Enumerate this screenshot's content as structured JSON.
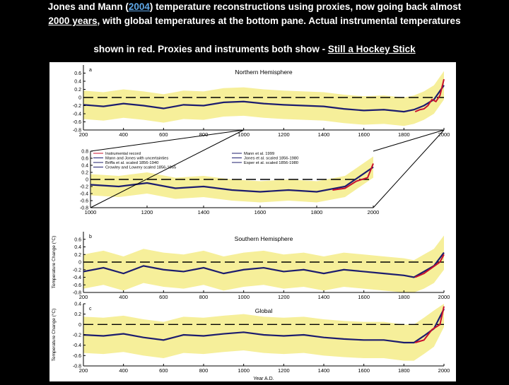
{
  "caption": {
    "line1_prefix": "Jones and Mann (",
    "line1_year": "2004",
    "line1_suffix": ") temperature reconstructions using proxies, now going back almost",
    "line2_years": "2000 years",
    "line2_suffix": ", with global temperatures at the bottom pane. Actual instrumental temperatures",
    "line3_prefix": "shown in red. Proxies and instruments both show - ",
    "line3_link": "Still a Hockey Stick"
  },
  "colors": {
    "band": "#f6ef9a",
    "recon": "#1c1c6e",
    "instrumental": "#c8102e",
    "dashed": "#000000"
  },
  "chart_data": [
    {
      "id": "a",
      "type": "line",
      "panel_letter": "a",
      "title": "Northern Hemisphere",
      "xlim": [
        200,
        2000
      ],
      "ylim": [
        -0.8,
        0.8
      ],
      "xticks": [
        "200",
        "400",
        "600",
        "800",
        "1000",
        "1200",
        "1400",
        "1600",
        "1800",
        "2000"
      ],
      "yticks": [
        "0.6",
        "0.4",
        "0.2",
        "0",
        "-0.2",
        "-0.4",
        "-0.6",
        "-0.8"
      ],
      "band_halfwidth": 0.35,
      "series": [
        {
          "kind": "reconstruction",
          "x": [
            200,
            300,
            400,
            500,
            600,
            700,
            800,
            900,
            1000,
            1100,
            1200,
            1300,
            1400,
            1500,
            1600,
            1700,
            1800,
            1850,
            1900,
            1950,
            2000
          ],
          "values": [
            -0.18,
            -0.22,
            -0.15,
            -0.2,
            -0.27,
            -0.18,
            -0.2,
            -0.12,
            -0.1,
            -0.15,
            -0.18,
            -0.2,
            -0.22,
            -0.28,
            -0.32,
            -0.3,
            -0.35,
            -0.3,
            -0.2,
            -0.05,
            0.3
          ]
        },
        {
          "kind": "instrumental",
          "x": [
            1856,
            1880,
            1900,
            1920,
            1940,
            1960,
            1980,
            2000
          ],
          "values": [
            -0.35,
            -0.3,
            -0.28,
            -0.2,
            -0.05,
            -0.1,
            0.05,
            0.45
          ]
        }
      ]
    },
    {
      "id": "inset",
      "type": "line",
      "xlim": [
        1000,
        2000
      ],
      "ylim": [
        -0.8,
        0.8
      ],
      "xticks": [
        "1000",
        "1200",
        "1400",
        "1600",
        "1800",
        "2000"
      ],
      "yticks": [
        "0.8",
        "0.6",
        "0.4",
        "0.2",
        "0",
        "-0.2",
        "-0.4",
        "-0.6",
        "-0.8"
      ],
      "band_halfwidth": 0.3,
      "legend": [
        "Instrumental record",
        "Mann and Jones with uncertainties",
        "Briffa et al. scaled 1856-1940",
        "Crowley and Lowery scaled 1856-1965",
        "Mann et al. 1999",
        "Jones et al. scaled 1856-1980",
        "Esper et al. scaled 1856-1980"
      ],
      "series": [
        {
          "kind": "reconstruction",
          "x": [
            1000,
            1100,
            1200,
            1300,
            1400,
            1500,
            1600,
            1700,
            1800,
            1900,
            2000
          ],
          "values": [
            -0.15,
            -0.2,
            -0.1,
            -0.25,
            -0.2,
            -0.3,
            -0.35,
            -0.3,
            -0.35,
            -0.2,
            0.35
          ]
        },
        {
          "kind": "instrumental",
          "x": [
            1856,
            1900,
            1940,
            1980,
            2000
          ],
          "values": [
            -0.3,
            -0.25,
            -0.05,
            0.05,
            0.45
          ]
        }
      ]
    },
    {
      "id": "b",
      "type": "line",
      "panel_letter": "b",
      "title": "Southern Hemisphere",
      "xlim": [
        200,
        2000
      ],
      "ylim": [
        -0.8,
        0.8
      ],
      "xticks": [
        "200",
        "400",
        "600",
        "800",
        "1000",
        "1200",
        "1400",
        "1600",
        "1800",
        "2000"
      ],
      "yticks": [
        "0.6",
        "0.4",
        "0.2",
        "0",
        "-0.2",
        "-0.4",
        "-0.6",
        "-0.8"
      ],
      "ylabel": "Temperature Change (°C)",
      "band_halfwidth": 0.45,
      "series": [
        {
          "kind": "reconstruction",
          "x": [
            200,
            300,
            400,
            500,
            600,
            700,
            800,
            900,
            1000,
            1100,
            1200,
            1300,
            1400,
            1500,
            1600,
            1700,
            1800,
            1850,
            1900,
            1950,
            2000
          ],
          "values": [
            -0.25,
            -0.15,
            -0.3,
            -0.1,
            -0.2,
            -0.25,
            -0.15,
            -0.3,
            -0.2,
            -0.15,
            -0.25,
            -0.2,
            -0.3,
            -0.2,
            -0.25,
            -0.3,
            -0.35,
            -0.4,
            -0.25,
            -0.1,
            0.25
          ]
        },
        {
          "kind": "instrumental",
          "x": [
            1856,
            1900,
            1940,
            1980,
            2000
          ],
          "values": [
            -0.4,
            -0.3,
            -0.15,
            0.0,
            0.2
          ]
        }
      ]
    },
    {
      "id": "c",
      "type": "line",
      "panel_letter": "c",
      "title": "Global",
      "xlim": [
        200,
        2000
      ],
      "ylim": [
        -0.8,
        0.4
      ],
      "xticks": [
        "200",
        "400",
        "600",
        "800",
        "1000",
        "1200",
        "1400",
        "1600",
        "1800",
        "2000"
      ],
      "yticks": [
        "0.4",
        "0.2",
        "0",
        "-0.2",
        "-0.4",
        "-0.6",
        "-0.8"
      ],
      "ylabel": "Temperature Change (°C)",
      "xlabel": "Year A.D.",
      "band_halfwidth": 0.35,
      "series": [
        {
          "kind": "reconstruction",
          "x": [
            200,
            300,
            400,
            500,
            600,
            700,
            800,
            900,
            1000,
            1100,
            1200,
            1300,
            1400,
            1500,
            1600,
            1700,
            1800,
            1850,
            1900,
            1950,
            2000
          ],
          "values": [
            -0.2,
            -0.22,
            -0.18,
            -0.25,
            -0.3,
            -0.2,
            -0.22,
            -0.18,
            -0.15,
            -0.2,
            -0.22,
            -0.2,
            -0.25,
            -0.28,
            -0.3,
            -0.3,
            -0.35,
            -0.35,
            -0.22,
            -0.08,
            0.3
          ]
        },
        {
          "kind": "instrumental",
          "x": [
            1856,
            1900,
            1940,
            1980,
            2000
          ],
          "values": [
            -0.35,
            -0.3,
            -0.1,
            0.0,
            0.35
          ]
        }
      ]
    }
  ]
}
